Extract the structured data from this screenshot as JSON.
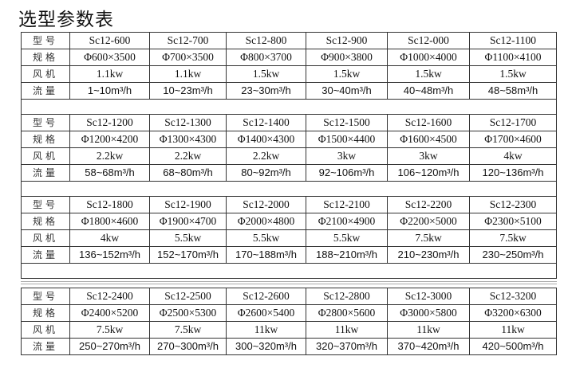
{
  "title": "选型参数表",
  "row_labels": {
    "model": "型号",
    "spec": "规格",
    "fan": "风机",
    "flow": "流量"
  },
  "groups": [
    {
      "models": [
        "Sc12-600",
        "Sc12-700",
        "Sc12-800",
        "Sc12-900",
        "Sc12-000",
        "Sc12-1100"
      ],
      "specs": [
        "Φ600×3500",
        "Φ700×3500",
        "Φ800×3700",
        "Φ900×3800",
        "Φ1000×4000",
        "Φ1100×4100"
      ],
      "fans": [
        "1.1kw",
        "1.1kw",
        "1.5kw",
        "1.5kw",
        "1.5kw",
        "1.5kw"
      ],
      "flows": [
        "1~10m³/h",
        "10~23m³/h",
        "23~30m³/h",
        "30~40m³/h",
        "40~48m³/h",
        "48~58m³/h"
      ]
    },
    {
      "models": [
        "Sc12-1200",
        "Sc12-1300",
        "Sc12-1400",
        "Sc12-1500",
        "Sc12-1600",
        "Sc12-1700"
      ],
      "specs": [
        "Φ1200×4200",
        "Φ1300×4300",
        "Φ1400×4300",
        "Φ1500×4400",
        "Φ1600×4500",
        "Φ1700×4600"
      ],
      "fans": [
        "2.2kw",
        "2.2kw",
        "2.2kw",
        "3kw",
        "3kw",
        "4kw"
      ],
      "flows": [
        "58~68m³/h",
        "68~80m³/h",
        "80~92m³/h",
        "92~106m³/h",
        "106~120m³/h",
        "120~136m³/h"
      ]
    },
    {
      "models": [
        "Sc12-1800",
        "Sc12-1900",
        "Sc12-2000",
        "Sc12-2100",
        "Sc12-2200",
        "Sc12-2300"
      ],
      "specs": [
        "Φ1800×4600",
        "Φ1900×4700",
        "Φ2000×4800",
        "Φ2100×4900",
        "Φ2200×5000",
        "Φ2300×5100"
      ],
      "fans": [
        "4kw",
        "5.5kw",
        "5.5kw",
        "5.5kw",
        "7.5kw",
        "7.5kw"
      ],
      "flows": [
        "136~152m³/h",
        "152~170m³/h",
        "170~188m³/h",
        "188~210m³/h",
        "210~230m³/h",
        "230~250m³/h"
      ]
    },
    {
      "models": [
        "Sc12-2400",
        "Sc12-2500",
        "Sc12-2600",
        "Sc12-2800",
        "Sc12-3000",
        "Sc12-3200"
      ],
      "specs": [
        "Φ2400×5200",
        "Φ2500×5300",
        "Φ2600×5400",
        "Φ2800×5600",
        "Φ3000×5800",
        "Φ3200×6300"
      ],
      "fans": [
        "7.5kw",
        "7.5kw",
        "11kw",
        "11kw",
        "11kw",
        "11kw"
      ],
      "flows": [
        "250~270m³/h",
        "270~300m³/h",
        "300~320m³/h",
        "320~370m³/h",
        "370~420m³/h",
        "420~500m³/h"
      ]
    }
  ]
}
